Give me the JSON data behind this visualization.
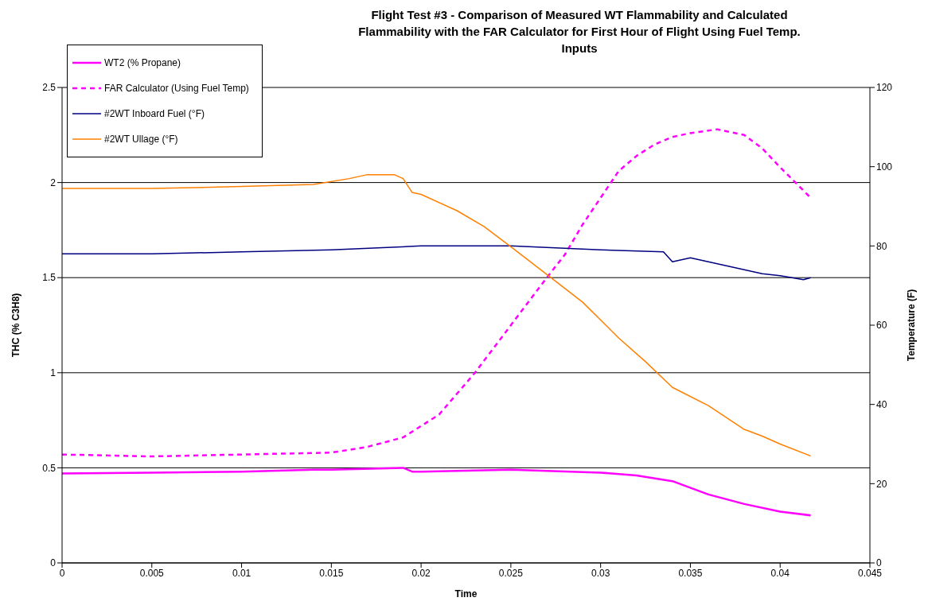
{
  "chart_data": {
    "type": "line",
    "title": "Flight Test #3 - Comparison of Measured WT Flammability and Calculated Flammability with the FAR Calculator for First Hour of Flight Using Fuel Temp. Inputs",
    "xlabel": "Time",
    "ylabel": "THC (% C3H8)",
    "y2label": "Temperature (F)",
    "xlim": [
      0,
      0.045
    ],
    "xticks": [
      0,
      0.005,
      0.01,
      0.015,
      0.02,
      0.025,
      0.03,
      0.035,
      0.04,
      0.045
    ],
    "ylim": [
      0,
      2.5
    ],
    "yticks": [
      0,
      0.5,
      1,
      1.5,
      2,
      2.5
    ],
    "y2lim": [
      0,
      120
    ],
    "y2ticks": [
      0,
      20,
      40,
      60,
      80,
      100,
      120
    ],
    "grid": "y",
    "legend": "top left",
    "marker": "none",
    "series": [
      {
        "name": "WT2 (% Propane)",
        "color": "#ff00ff",
        "line_style": "solid",
        "x": [
          0,
          0.005,
          0.01,
          0.014,
          0.015,
          0.019,
          0.0195,
          0.02,
          0.025,
          0.03,
          0.032,
          0.034,
          0.036,
          0.038,
          0.04,
          0.0417
        ],
        "values": [
          0.47,
          0.475,
          0.48,
          0.49,
          0.49,
          0.5,
          0.48,
          0.48,
          0.49,
          0.475,
          0.46,
          0.43,
          0.36,
          0.31,
          0.27,
          0.25
        ]
      },
      {
        "name": "FAR Calculator (Using Fuel Temp)",
        "color": "#ff00ff",
        "line_style": "dashed",
        "x": [
          0,
          0.005,
          0.01,
          0.015,
          0.017,
          0.019,
          0.021,
          0.023,
          0.025,
          0.027,
          0.028,
          0.029,
          0.03,
          0.031,
          0.032,
          0.033,
          0.034,
          0.035,
          0.0365,
          0.038,
          0.039,
          0.04,
          0.0417
        ],
        "values": [
          0.57,
          0.56,
          0.57,
          0.58,
          0.61,
          0.66,
          0.78,
          1.0,
          1.25,
          1.5,
          1.62,
          1.78,
          1.92,
          2.06,
          2.14,
          2.2,
          2.24,
          2.26,
          2.28,
          2.25,
          2.18,
          2.08,
          1.92
        ]
      },
      {
        "name": "#2WT Inboard Fuel (°F)",
        "color": "#000080",
        "line_style": "solid",
        "axis": "y2",
        "x": [
          0,
          0.005,
          0.01,
          0.015,
          0.02,
          0.025,
          0.03,
          0.0335,
          0.034,
          0.035,
          0.037,
          0.038,
          0.039,
          0.04,
          0.0413,
          0.0417
        ],
        "values": [
          78,
          78,
          78.5,
          79,
          80,
          80,
          79,
          78.5,
          76,
          77,
          75,
          74,
          73,
          72.5,
          71.5,
          72
        ]
      },
      {
        "name": "#2WT Ullage (°F)",
        "color": "#ff8000",
        "line_style": "solid",
        "axis": "y2",
        "x": [
          0,
          0.005,
          0.01,
          0.014,
          0.016,
          0.017,
          0.0185,
          0.019,
          0.0195,
          0.02,
          0.022,
          0.0235,
          0.025,
          0.027,
          0.029,
          0.031,
          0.0325,
          0.034,
          0.036,
          0.038,
          0.039,
          0.04,
          0.0417
        ],
        "values": [
          94.5,
          94.5,
          95,
          95.5,
          97,
          98,
          98,
          97,
          93.5,
          93,
          88.9,
          84.9,
          79.8,
          72.8,
          65.8,
          56.8,
          50.8,
          44.3,
          39.7,
          33.7,
          32,
          30,
          27
        ]
      }
    ]
  }
}
